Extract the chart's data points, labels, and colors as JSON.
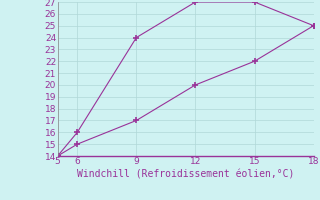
{
  "xlabel": "Windchill (Refroidissement éolien,°C)",
  "x_data": [
    5,
    6,
    9,
    12,
    15,
    18
  ],
  "y_data_line1": [
    14,
    16,
    24,
    27,
    27,
    25
  ],
  "y_data_line2": [
    14,
    15,
    17,
    20,
    22,
    25
  ],
  "line_color": "#993399",
  "marker": "+",
  "xlim": [
    5,
    18
  ],
  "ylim": [
    14,
    27
  ],
  "xticks": [
    5,
    6,
    9,
    12,
    15,
    18
  ],
  "yticks": [
    14,
    15,
    16,
    17,
    18,
    19,
    20,
    21,
    22,
    23,
    24,
    25,
    26,
    27
  ],
  "bg_color": "#cff2f2",
  "grid_color": "#b0d8d8",
  "label_color": "#993399",
  "spine_color": "#993399",
  "tick_fontsize": 6.5,
  "xlabel_fontsize": 7
}
